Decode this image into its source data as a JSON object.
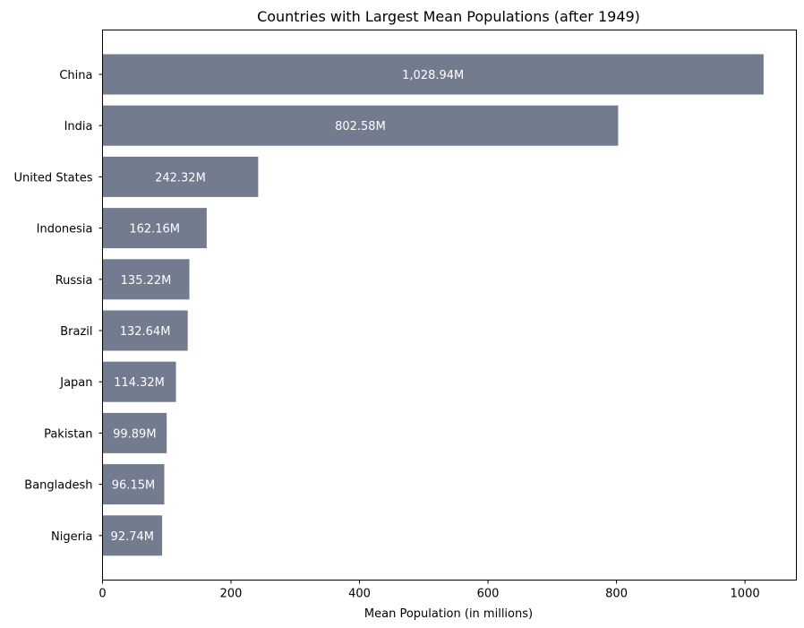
{
  "chart_data": {
    "type": "bar",
    "orientation": "horizontal",
    "title": "Countries with Largest Mean Populations (after 1949)",
    "xlabel": "Mean Population (in millions)",
    "ylabel": "",
    "xlim": [
      0,
      1080
    ],
    "xticks": [
      0,
      200,
      400,
      600,
      800,
      1000
    ],
    "grid": false,
    "bar_color": "#737b8f",
    "label_color": "#ffffff",
    "categories": [
      "China",
      "India",
      "United States",
      "Indonesia",
      "Russia",
      "Brazil",
      "Japan",
      "Pakistan",
      "Bangladesh",
      "Nigeria"
    ],
    "values": [
      1028.94,
      802.58,
      242.32,
      162.16,
      135.22,
      132.64,
      114.32,
      99.89,
      96.15,
      92.74
    ],
    "data_labels": [
      "1,028.94M",
      "802.58M",
      "242.32M",
      "162.16M",
      "135.22M",
      "132.64M",
      "114.32M",
      "99.89M",
      "96.15M",
      "92.74M"
    ]
  }
}
